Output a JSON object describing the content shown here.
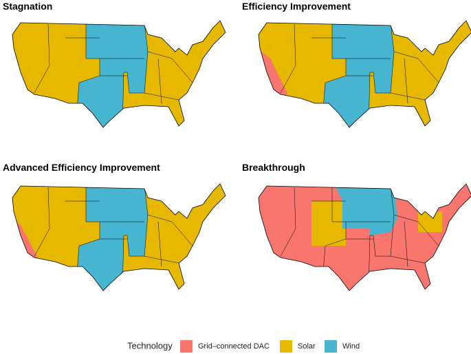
{
  "panels": [
    {
      "title": "Stagnation"
    },
    {
      "title": "Efficiency Improvement"
    },
    {
      "title": "Advanced Efficiency Improvement"
    },
    {
      "title": "Breakthrough"
    }
  ],
  "legend": {
    "title": "Technology",
    "items": [
      {
        "label": "Grid–connected DAC",
        "color": "#f8766d"
      },
      {
        "label": "Solar",
        "color": "#e7b800"
      },
      {
        "label": "Wind",
        "color": "#47b5cf"
      }
    ]
  }
}
